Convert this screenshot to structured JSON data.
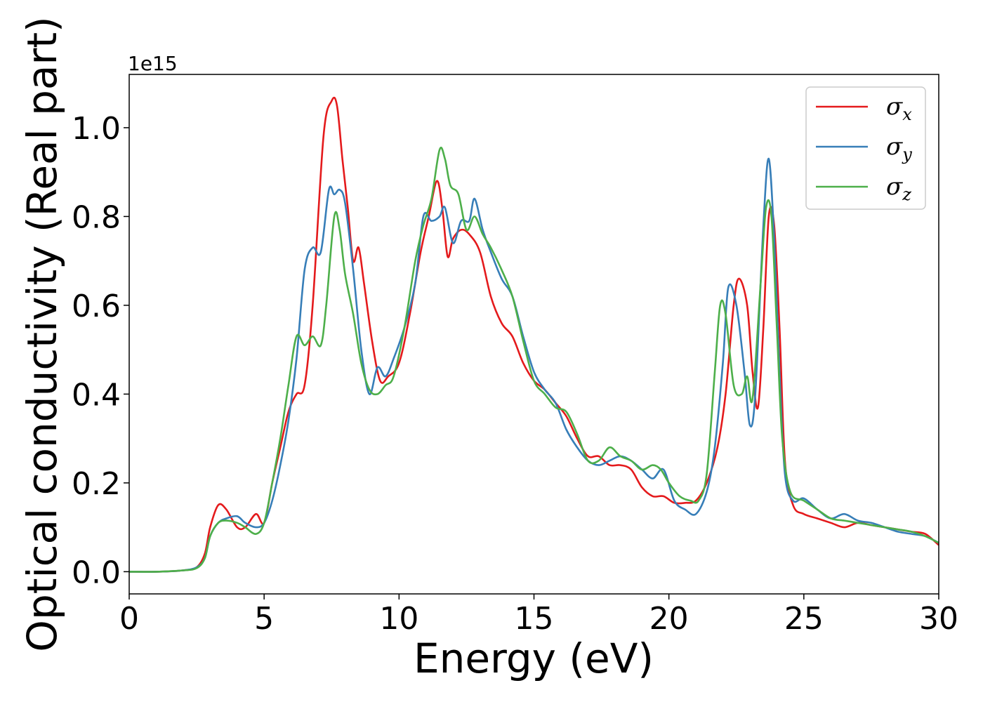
{
  "chart_data": {
    "type": "line",
    "title": "",
    "xlabel": "Energy (eV)",
    "ylabel": "Optical conductivity (Real part)",
    "y_offset_label": "1e15",
    "xlim": [
      0,
      30
    ],
    "ylim": [
      -0.05,
      1.12
    ],
    "xticks": [
      0,
      5,
      10,
      15,
      20,
      25,
      30
    ],
    "xtick_labels": [
      "0",
      "5",
      "10",
      "15",
      "20",
      "25",
      "30"
    ],
    "yticks": [
      0.0,
      0.2,
      0.4,
      0.6,
      0.8,
      1.0
    ],
    "ytick_labels": [
      "0.0",
      "0.2",
      "0.4",
      "0.6",
      "0.8",
      "1.0"
    ],
    "grid": false,
    "legend_position": "top-right",
    "series": [
      {
        "name": "σx",
        "legend_symbol": "σ",
        "legend_subscript": "x",
        "color": "#e41a1c",
        "x": [
          0,
          1,
          2,
          2.5,
          2.8,
          3.0,
          3.3,
          3.6,
          4.0,
          4.3,
          4.7,
          5.0,
          5.3,
          5.6,
          5.9,
          6.2,
          6.5,
          6.8,
          7.2,
          7.5,
          7.7,
          7.9,
          8.1,
          8.3,
          8.5,
          8.7,
          9.0,
          9.3,
          9.6,
          10.0,
          10.4,
          10.8,
          11.1,
          11.4,
          11.6,
          11.8,
          12.0,
          12.3,
          12.6,
          13.0,
          13.4,
          13.8,
          14.2,
          14.6,
          15.0,
          15.4,
          15.8,
          16.2,
          16.6,
          17.0,
          17.4,
          17.8,
          18.2,
          18.6,
          19.0,
          19.4,
          19.8,
          20.2,
          20.6,
          21.0,
          21.4,
          21.8,
          22.1,
          22.4,
          22.6,
          22.9,
          23.1,
          23.3,
          23.5,
          23.7,
          23.9,
          24.1,
          24.3,
          24.6,
          25.0,
          25.5,
          26.0,
          26.5,
          27.0,
          27.5,
          28.0,
          28.5,
          29.0,
          29.5,
          30.0
        ],
        "y": [
          0.0,
          0.0,
          0.003,
          0.01,
          0.04,
          0.1,
          0.15,
          0.14,
          0.1,
          0.1,
          0.13,
          0.11,
          0.2,
          0.28,
          0.36,
          0.4,
          0.42,
          0.6,
          0.98,
          1.06,
          1.05,
          0.93,
          0.82,
          0.7,
          0.73,
          0.65,
          0.52,
          0.43,
          0.44,
          0.47,
          0.58,
          0.72,
          0.8,
          0.88,
          0.82,
          0.71,
          0.75,
          0.77,
          0.76,
          0.72,
          0.62,
          0.56,
          0.53,
          0.47,
          0.43,
          0.41,
          0.38,
          0.35,
          0.3,
          0.26,
          0.26,
          0.24,
          0.24,
          0.23,
          0.19,
          0.17,
          0.17,
          0.155,
          0.155,
          0.16,
          0.2,
          0.28,
          0.4,
          0.6,
          0.66,
          0.6,
          0.45,
          0.37,
          0.55,
          0.8,
          0.78,
          0.55,
          0.25,
          0.15,
          0.13,
          0.12,
          0.11,
          0.1,
          0.11,
          0.105,
          0.1,
          0.095,
          0.09,
          0.085,
          0.06
        ]
      },
      {
        "name": "σy",
        "legend_symbol": "σ",
        "legend_subscript": "y",
        "color": "#377eb8",
        "x": [
          0,
          1,
          2,
          2.5,
          2.8,
          3.0,
          3.3,
          3.6,
          4.0,
          4.3,
          4.7,
          5.0,
          5.3,
          5.6,
          5.9,
          6.2,
          6.5,
          6.8,
          7.1,
          7.4,
          7.6,
          7.8,
          8.0,
          8.3,
          8.6,
          8.9,
          9.2,
          9.5,
          9.8,
          10.2,
          10.6,
          10.9,
          11.2,
          11.5,
          11.7,
          12.0,
          12.3,
          12.6,
          12.8,
          13.1,
          13.4,
          13.8,
          14.2,
          14.6,
          15.0,
          15.4,
          15.8,
          16.2,
          16.6,
          17.0,
          17.4,
          17.8,
          18.2,
          18.6,
          19.0,
          19.4,
          19.8,
          20.2,
          20.6,
          21.0,
          21.4,
          21.7,
          22.0,
          22.2,
          22.5,
          22.8,
          23.0,
          23.2,
          23.5,
          23.7,
          23.9,
          24.1,
          24.3,
          24.6,
          25.0,
          25.5,
          26.0,
          26.5,
          27.0,
          27.5,
          28.0,
          28.5,
          29.0,
          29.5,
          30.0
        ],
        "y": [
          0.0,
          0.0,
          0.003,
          0.01,
          0.03,
          0.08,
          0.11,
          0.12,
          0.125,
          0.11,
          0.1,
          0.11,
          0.16,
          0.24,
          0.34,
          0.48,
          0.68,
          0.73,
          0.72,
          0.86,
          0.85,
          0.86,
          0.83,
          0.68,
          0.5,
          0.4,
          0.46,
          0.44,
          0.48,
          0.55,
          0.65,
          0.8,
          0.79,
          0.8,
          0.82,
          0.74,
          0.79,
          0.79,
          0.84,
          0.77,
          0.72,
          0.66,
          0.62,
          0.53,
          0.45,
          0.41,
          0.38,
          0.32,
          0.28,
          0.25,
          0.24,
          0.25,
          0.26,
          0.25,
          0.23,
          0.21,
          0.23,
          0.16,
          0.14,
          0.13,
          0.18,
          0.28,
          0.47,
          0.64,
          0.6,
          0.45,
          0.33,
          0.4,
          0.78,
          0.93,
          0.75,
          0.45,
          0.22,
          0.16,
          0.165,
          0.14,
          0.12,
          0.13,
          0.115,
          0.11,
          0.1,
          0.09,
          0.085,
          0.08,
          0.065
        ]
      },
      {
        "name": "σz",
        "legend_symbol": "σ",
        "legend_subscript": "z",
        "color": "#4daf4a",
        "x": [
          0,
          1,
          2,
          2.5,
          2.8,
          3.0,
          3.3,
          3.6,
          4.0,
          4.3,
          4.7,
          5.0,
          5.3,
          5.6,
          5.9,
          6.2,
          6.5,
          6.8,
          7.1,
          7.3,
          7.6,
          7.8,
          8.0,
          8.3,
          8.6,
          8.9,
          9.2,
          9.5,
          9.8,
          10.2,
          10.6,
          10.9,
          11.2,
          11.5,
          11.7,
          11.9,
          12.2,
          12.5,
          12.8,
          13.1,
          13.4,
          13.8,
          14.2,
          14.6,
          15.0,
          15.4,
          15.8,
          16.2,
          16.6,
          17.0,
          17.4,
          17.8,
          18.2,
          18.6,
          19.0,
          19.4,
          19.7,
          20.0,
          20.4,
          20.8,
          21.1,
          21.4,
          21.7,
          21.9,
          22.1,
          22.4,
          22.7,
          22.9,
          23.1,
          23.4,
          23.6,
          23.8,
          24.0,
          24.2,
          24.5,
          25.0,
          25.5,
          26.0,
          26.5,
          27.0,
          27.5,
          28.0,
          28.5,
          29.0,
          29.5,
          30.0
        ],
        "y": [
          0.0,
          0.0,
          0.003,
          0.008,
          0.03,
          0.08,
          0.11,
          0.115,
          0.11,
          0.1,
          0.085,
          0.11,
          0.2,
          0.3,
          0.42,
          0.53,
          0.51,
          0.53,
          0.51,
          0.6,
          0.8,
          0.77,
          0.67,
          0.58,
          0.47,
          0.41,
          0.4,
          0.42,
          0.44,
          0.55,
          0.7,
          0.78,
          0.84,
          0.95,
          0.93,
          0.87,
          0.85,
          0.77,
          0.8,
          0.76,
          0.73,
          0.68,
          0.62,
          0.52,
          0.43,
          0.4,
          0.37,
          0.36,
          0.31,
          0.25,
          0.25,
          0.28,
          0.26,
          0.25,
          0.23,
          0.24,
          0.23,
          0.2,
          0.17,
          0.16,
          0.16,
          0.22,
          0.45,
          0.6,
          0.58,
          0.42,
          0.4,
          0.44,
          0.39,
          0.65,
          0.82,
          0.8,
          0.55,
          0.3,
          0.18,
          0.16,
          0.14,
          0.12,
          0.115,
          0.11,
          0.105,
          0.1,
          0.095,
          0.09,
          0.08,
          0.065
        ]
      }
    ]
  }
}
